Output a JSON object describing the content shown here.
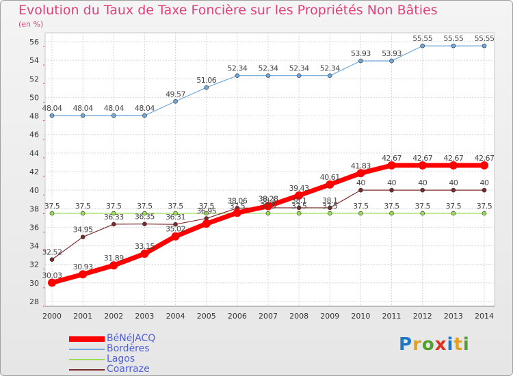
{
  "chart_data": {
    "type": "line",
    "title": "Evolution du Taux de Taxe Foncière sur les Propriétés Non Bâties",
    "ylabel": "(en %)",
    "xlabel": "",
    "x": [
      "2000",
      "2001",
      "2002",
      "2003",
      "2004",
      "2005",
      "2006",
      "2007",
      "2008",
      "2009",
      "2010",
      "2011",
      "2012",
      "2013",
      "2014"
    ],
    "ylim": [
      28,
      56
    ],
    "yticks": [
      28,
      30,
      32,
      34,
      36,
      38,
      40,
      42,
      44,
      46,
      48,
      50,
      52,
      54,
      56
    ],
    "grid": true,
    "legend_position": "bottom-left",
    "series": [
      {
        "name": "BéNéJACQ",
        "color": "#ff0000",
        "values": [
          30.03,
          30.93,
          31.89,
          33.15,
          35.02,
          36.38,
          37.56,
          38.28,
          39.43,
          40.61,
          41.83,
          42.67,
          42.67,
          42.67,
          42.67
        ],
        "labels": [
          "30.03",
          "30.93",
          "31.89",
          "33.15",
          "35.02",
          "",
          "",
          "38.28",
          "39.43",
          "40.61",
          "41.83",
          "42.67",
          "42.67",
          "42.67",
          "42.67"
        ]
      },
      {
        "name": "Bordères",
        "color": "#6fa8dc",
        "values": [
          48.04,
          48.04,
          48.04,
          48.04,
          49.57,
          51.06,
          52.34,
          52.34,
          52.34,
          52.34,
          53.93,
          53.93,
          55.55,
          55.55,
          55.55
        ],
        "labels": [
          "48.04",
          "48.04",
          "48.04",
          "48.04",
          "49.57",
          "51.06",
          "52.34",
          "52.34",
          "52.34",
          "52.34",
          "53.93",
          "53.93",
          "55.55",
          "55.55",
          "55.55"
        ]
      },
      {
        "name": "Lagos",
        "color": "#99dd55",
        "values": [
          37.5,
          37.5,
          37.5,
          37.5,
          37.5,
          37.5,
          37.5,
          37.5,
          37.5,
          37.5,
          37.5,
          37.5,
          37.5,
          37.5,
          37.5
        ],
        "labels": [
          "37.5",
          "37.5",
          "37.5",
          "37.5",
          "37.5",
          "37.5",
          "37.5",
          "37.5",
          "37.5",
          "37.5",
          "37.5",
          "37.5",
          "37.5",
          "37.5",
          "37.5"
        ]
      },
      {
        "name": "Coarraze",
        "color": "#7a2a2a",
        "values": [
          32.52,
          34.95,
          36.33,
          36.35,
          36.31,
          36.95,
          38.06,
          38.1,
          38.1,
          38.1,
          40,
          40,
          40,
          40,
          40
        ],
        "labels": [
          "32.52",
          "34.95",
          "36.33",
          "36.35",
          "36.31",
          "36.95",
          "38.06",
          "38.1",
          "38.1",
          "38.1",
          "40",
          "40",
          "40",
          "40",
          "40"
        ]
      }
    ]
  },
  "logo": {
    "text": "Proxiti",
    "letters": [
      {
        "ch": "P",
        "color": "#1e78c8"
      },
      {
        "ch": "r",
        "color": "#e0a020"
      },
      {
        "ch": "o",
        "color": "#50a030"
      },
      {
        "ch": "x",
        "color": "#e03020"
      },
      {
        "ch": "i",
        "color": "#1e78c8"
      },
      {
        "ch": "t",
        "color": "#e0a020"
      },
      {
        "ch": "i",
        "color": "#50a030"
      }
    ]
  }
}
